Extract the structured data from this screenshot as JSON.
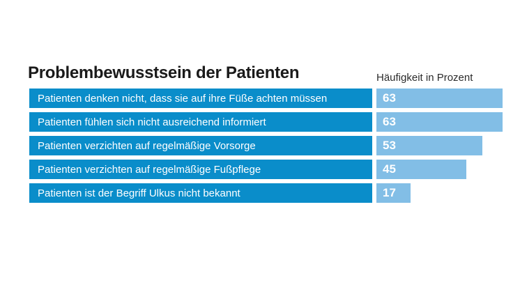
{
  "header": {
    "title": "Problembewusstsein der Patienten",
    "axis_label": "Häufigkeit in Prozent"
  },
  "colors": {
    "bar_dark": "#0a8dca",
    "bar_light": "#82bee6",
    "title_text": "#1a1a1a",
    "value_text": "#ffffff",
    "background": "#ffffff"
  },
  "chart_data": {
    "type": "bar",
    "orientation": "horizontal",
    "title": "Problembewusstsein der Patienten",
    "value_axis_label": "Häufigkeit in Prozent",
    "unit": "percent",
    "grid": false,
    "legend": false,
    "value_range": [
      0,
      70
    ],
    "categories": [
      "Patienten denken nicht, dass sie auf ihre Füße achten müssen",
      "Patienten fühlen sich nicht ausreichend informiert",
      "Patienten verzichten auf regelmäßige Vorsorge",
      "Patienten verzichten auf regelmäßige Fußpflege",
      "Patienten ist der Begriff Ulkus nicht bekannt"
    ],
    "values": [
      63,
      63,
      53,
      45,
      17
    ]
  }
}
